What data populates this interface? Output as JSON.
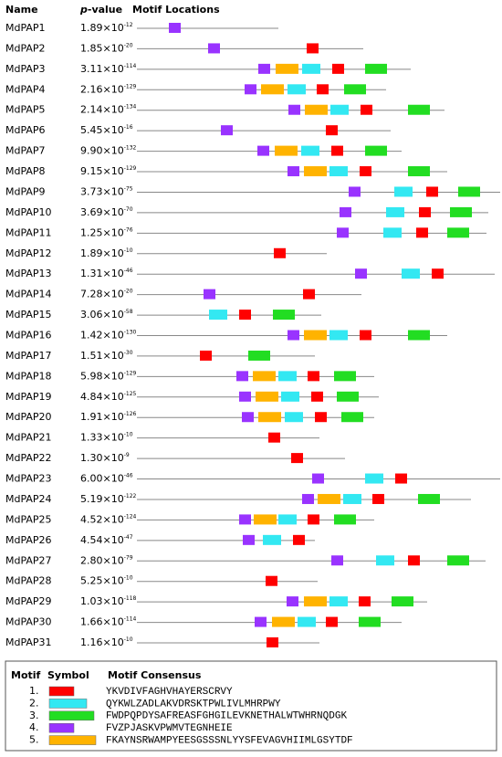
{
  "header": {
    "name": "Name",
    "p": "p",
    "value": "-value",
    "locations": "Motif Locations"
  },
  "genes": [
    {
      "name": "MdPAP1",
      "p": "1.89×10",
      "exp": "-12"
    },
    {
      "name": "MdPAP2",
      "p": "1.85×10",
      "exp": "-20"
    },
    {
      "name": "MdPAP3",
      "p": "3.11×10",
      "exp": "-114"
    },
    {
      "name": "MdPAP4",
      "p": "2.16×10",
      "exp": "-129"
    },
    {
      "name": "MdPAP5",
      "p": "2.14×10",
      "exp": "-134"
    },
    {
      "name": "MdPAP6",
      "p": "5.45×10",
      "exp": "-16"
    },
    {
      "name": "MdPAP7",
      "p": "9.90×10",
      "exp": "-132"
    },
    {
      "name": "MdPAP8",
      "p": "9.15×10",
      "exp": "-129"
    },
    {
      "name": "MdPAP9",
      "p": "3.73×10",
      "exp": "-75"
    },
    {
      "name": "MdPAP10",
      "p": "3.69×10",
      "exp": "-70"
    },
    {
      "name": "MdPAP11",
      "p": "1.25×10",
      "exp": "-76"
    },
    {
      "name": "MdPAP12",
      "p": "1.89×10",
      "exp": "-10"
    },
    {
      "name": "MdPAP13",
      "p": "1.31×10",
      "exp": "-46"
    },
    {
      "name": "MdPAP14",
      "p": "7.28×10",
      "exp": "-20"
    },
    {
      "name": "MdPAP15",
      "p": "3.06×10",
      "exp": "-58"
    },
    {
      "name": "MdPAP16",
      "p": "1.42×10",
      "exp": "-130"
    },
    {
      "name": "MdPAP17",
      "p": "1.51×10",
      "exp": "-30"
    },
    {
      "name": "MdPAP18",
      "p": "5.98×10",
      "exp": "-129"
    },
    {
      "name": "MdPAP19",
      "p": "4.84×10",
      "exp": "-125"
    },
    {
      "name": "MdPAP20",
      "p": "1.91×10",
      "exp": "-126"
    },
    {
      "name": "MdPAP21",
      "p": "1.33×10",
      "exp": "-10"
    },
    {
      "name": "MdPAP22",
      "p": "1.30×10",
      "exp": "-9"
    },
    {
      "name": "MdPAP23",
      "p": "6.00×10",
      "exp": "-46"
    },
    {
      "name": "MdPAP24",
      "p": "5.19×10",
      "exp": "-122"
    },
    {
      "name": "MdPAP25",
      "p": "4.52×10",
      "exp": "-124"
    },
    {
      "name": "MdPAP26",
      "p": "4.54×10",
      "exp": "-47"
    },
    {
      "name": "MdPAP27",
      "p": "2.80×10",
      "exp": "-79"
    },
    {
      "name": "MdPAP28",
      "p": "5.25×10",
      "exp": "-10"
    },
    {
      "name": "MdPAP29",
      "p": "1.03×10",
      "exp": "-118"
    },
    {
      "name": "MdPAP30",
      "p": "1.66×10",
      "exp": "-114"
    },
    {
      "name": "MdPAP31",
      "p": "1.16×10",
      "exp": "-10"
    }
  ],
  "legend": {
    "headers": [
      "Motif",
      "Symbol",
      "Motif Consensus"
    ],
    "motifs": [
      {
        "number": "1.",
        "color": "#ff0000",
        "consensus": "YKVDIVFAGHVHAYERSCRVY"
      },
      {
        "number": "2.",
        "color": "#33e8f2",
        "consensus": "QYKWLZADLAKVDRSKTPWLIVLMHRPWY"
      },
      {
        "number": "3.",
        "color": "#22dd22",
        "consensus": "FWDPQPDYSAFREASFGHGILEVKNETHALWTWHRNQDGK"
      },
      {
        "number": "4.",
        "color": "#9933ff",
        "consensus": "FVZPJASKVPWMVTEGNHEIE"
      },
      {
        "number": "5.",
        "color": "#ffb300",
        "consensus": "FKAYNSRWAMPYEESGSSSNLYYSFEVAGVHIIMLGSYTDF"
      }
    ]
  }
}
